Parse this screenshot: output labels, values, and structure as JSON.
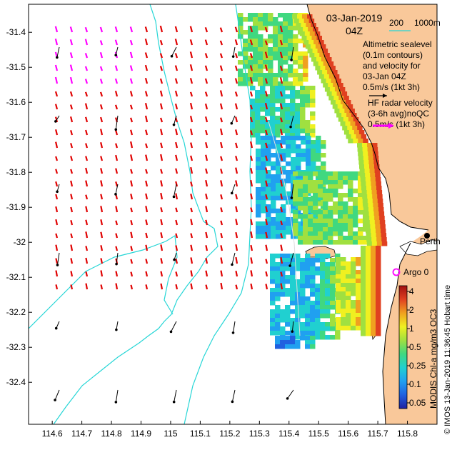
{
  "title": {
    "date": "03-Jan-2019",
    "time": "04Z"
  },
  "depth_legend": {
    "label_200": "200",
    "label_1000": "1000m",
    "line_color": "#26d6d6"
  },
  "altimetry_legend": {
    "lines": [
      "Altimetric sealevel",
      "(0.1m contours)",
      "and velocity for",
      "03-Jan 04Z"
    ],
    "scale": "0.5m/s (1kt 3h)"
  },
  "hf_legend": {
    "lines": [
      "HF radar velocity",
      "(3-6h avg)noQC"
    ],
    "scale": "0.5m/s (1kt 3h)",
    "arrow_color": "#ff00ff"
  },
  "places": {
    "city": "Perth",
    "argo": "Argo 0"
  },
  "colorbar": {
    "ticks": [
      "4",
      "2",
      "1",
      "0.5",
      "0.25",
      "0.1",
      "0.05"
    ],
    "label": "MODIS Chl-a mg/m3 OC3",
    "stops": [
      "#2020a0",
      "#2060e0",
      "#20a0f0",
      "#20d0d0",
      "#40d880",
      "#a0e040",
      "#f0f020",
      "#f0a020",
      "#e04020",
      "#a01010"
    ]
  },
  "credit": "© IMOS 13-Jan-2019 11:36:45 Hobart time",
  "axes": {
    "x_ticks": [
      "114.6",
      "114.7",
      "114.8",
      "114.9",
      "115",
      "115.1",
      "115.2",
      "115.3",
      "115.4",
      "115.5",
      "115.6",
      "115.7",
      "115.8"
    ],
    "y_ticks": [
      "-31.4",
      "-31.5",
      "-31.6",
      "-31.7",
      "-31.8",
      "-31.9",
      "-32",
      "-32.1",
      "-32.2",
      "-32.3",
      "-32.4"
    ],
    "x_range": [
      114.52,
      115.9
    ],
    "y_range": [
      -32.52,
      -31.32
    ]
  },
  "colors": {
    "land": "#f9c89a",
    "radar_arrow": "#e00000",
    "altimetry_arrow": "#000000",
    "contour": "#26d6d6"
  }
}
